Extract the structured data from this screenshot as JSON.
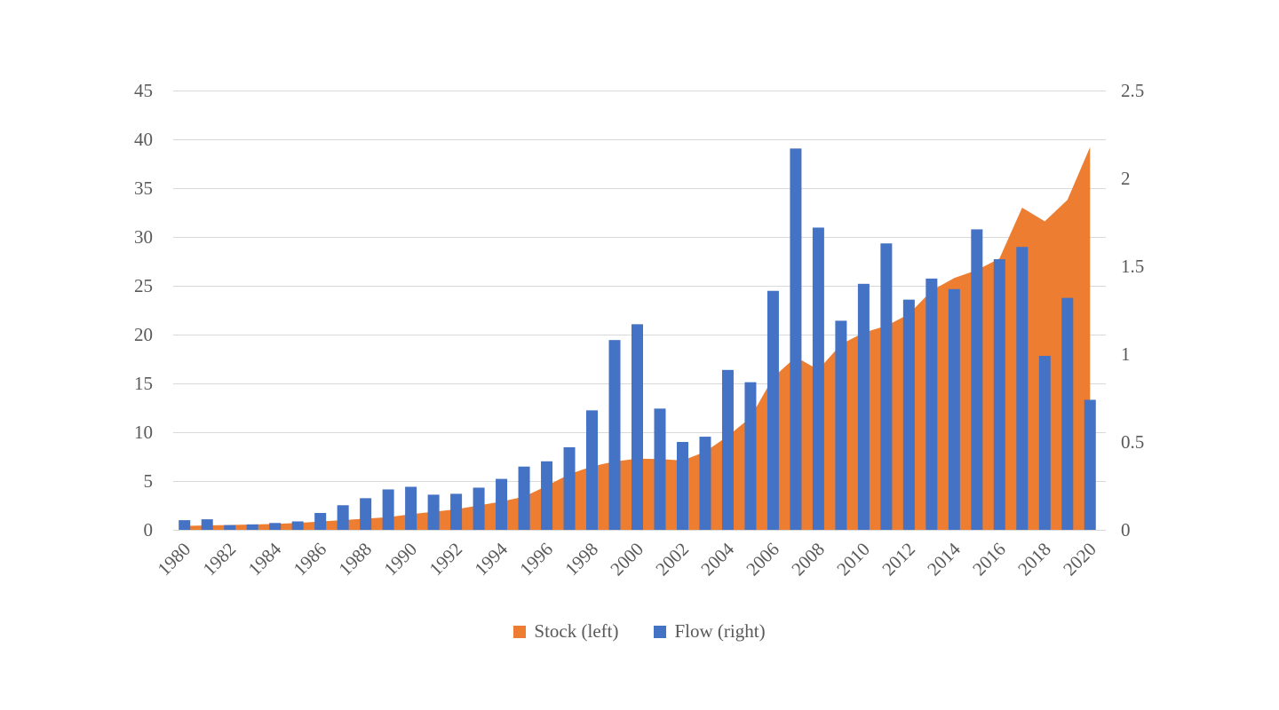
{
  "chart_data": {
    "type": "combo",
    "title": "",
    "categories": [
      1980,
      1981,
      1982,
      1983,
      1984,
      1985,
      1986,
      1987,
      1988,
      1989,
      1990,
      1991,
      1992,
      1993,
      1994,
      1995,
      1996,
      1997,
      1998,
      1999,
      2000,
      2001,
      2002,
      2003,
      2004,
      2005,
      2006,
      2007,
      2008,
      2009,
      2010,
      2011,
      2012,
      2013,
      2014,
      2015,
      2016,
      2017,
      2018,
      2019,
      2020
    ],
    "series": [
      {
        "name": "Stock (left)",
        "type": "area",
        "axis": "left",
        "color": "#ED7D31",
        "values": [
          0.4,
          0.45,
          0.5,
          0.55,
          0.6,
          0.7,
          0.85,
          1.0,
          1.15,
          1.3,
          1.6,
          1.85,
          2.1,
          2.5,
          2.9,
          3.4,
          4.5,
          5.7,
          6.5,
          7.0,
          7.3,
          7.25,
          7.1,
          8.0,
          9.6,
          11.5,
          15.6,
          17.7,
          16.4,
          19.0,
          20.2,
          20.9,
          22.1,
          24.5,
          25.8,
          26.6,
          27.8,
          33.0,
          31.6,
          33.8,
          39.2
        ]
      },
      {
        "name": "Flow (right)",
        "type": "bar",
        "axis": "right",
        "color": "#4472C4",
        "values": [
          0.055,
          0.06,
          0.027,
          0.031,
          0.039,
          0.048,
          0.096,
          0.14,
          0.18,
          0.23,
          0.245,
          0.2,
          0.205,
          0.24,
          0.29,
          0.36,
          0.39,
          0.47,
          0.68,
          1.08,
          1.17,
          0.69,
          0.5,
          0.53,
          0.91,
          0.84,
          1.36,
          2.17,
          1.72,
          1.19,
          1.4,
          1.63,
          1.31,
          1.43,
          1.37,
          1.71,
          1.54,
          1.61,
          0.99,
          1.32,
          0.74
        ]
      }
    ],
    "left_axis": {
      "min": 0,
      "max": 45,
      "tick_labels": [
        "0",
        "5",
        "10",
        "15",
        "20",
        "25",
        "30",
        "35",
        "40",
        "45"
      ]
    },
    "right_axis": {
      "min": 0,
      "max": 2.5,
      "tick_labels": [
        "0",
        "0.5",
        "1",
        "1.5",
        "2",
        "2.5"
      ]
    },
    "x_tick_labels": [
      "1980",
      "1982",
      "1984",
      "1986",
      "1988",
      "1990",
      "1992",
      "1994",
      "1996",
      "1998",
      "2000",
      "2002",
      "2004",
      "2006",
      "2008",
      "2010",
      "2012",
      "2014",
      "2016",
      "2018",
      "2020"
    ],
    "grid": true,
    "legend_position": "bottom",
    "legend": [
      {
        "label": "Stock (left)",
        "color": "#ED7D31"
      },
      {
        "label": "Flow (right)",
        "color": "#4472C4"
      }
    ],
    "text_color": "#595959",
    "gridline_color": "#D9D9D9",
    "background": "#FFFFFF"
  }
}
